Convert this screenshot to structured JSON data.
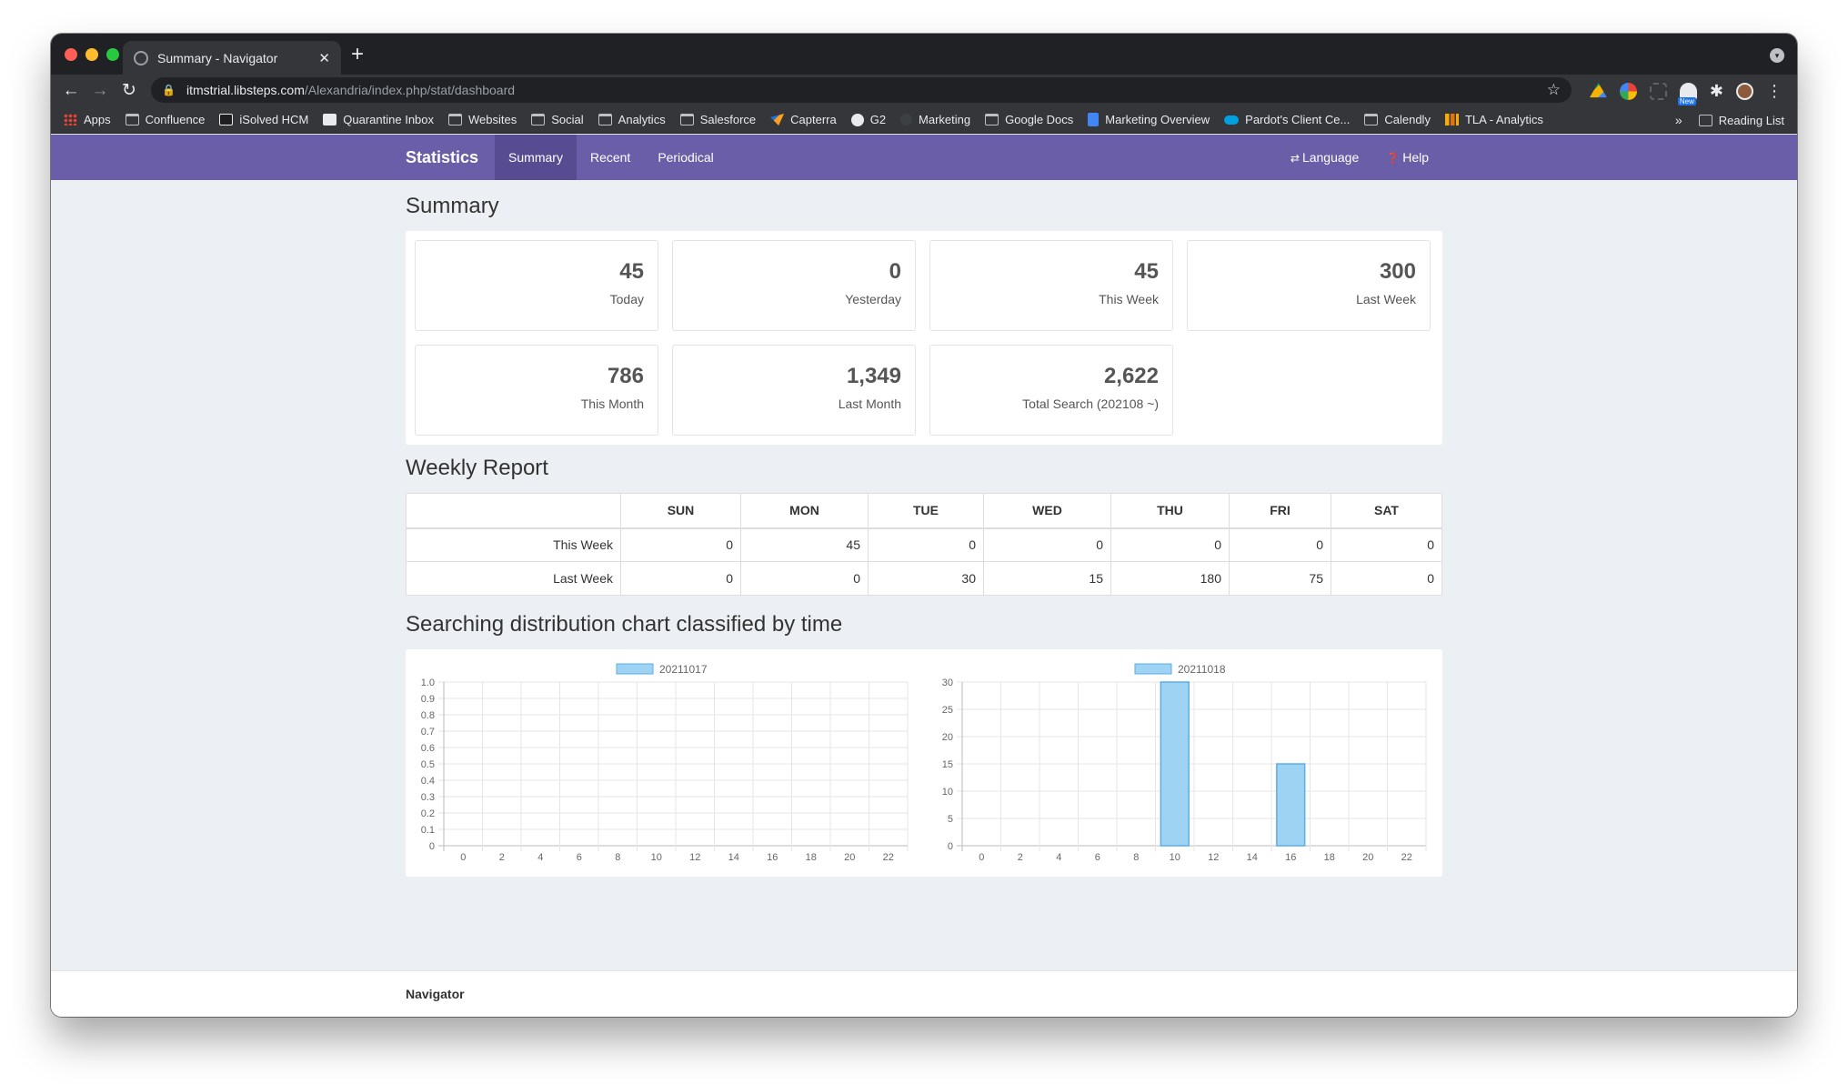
{
  "browser": {
    "tab_title": "Summary - Navigator",
    "url_host": "itmstrial.libsteps.com",
    "url_path": "/Alexandria/index.php/stat/dashboard",
    "bookmarks": [
      {
        "label": "Apps",
        "icon": "apps-grid-icon"
      },
      {
        "label": "Confluence",
        "icon": "folder-icon"
      },
      {
        "label": "iSolved HCM",
        "icon": "isolved-icon"
      },
      {
        "label": "Quarantine Inbox",
        "icon": "quarantine-icon"
      },
      {
        "label": "Websites",
        "icon": "folder-icon"
      },
      {
        "label": "Social",
        "icon": "folder-icon"
      },
      {
        "label": "Analytics",
        "icon": "folder-icon"
      },
      {
        "label": "Salesforce",
        "icon": "folder-icon"
      },
      {
        "label": "Capterra",
        "icon": "capterra-icon"
      },
      {
        "label": "G2",
        "icon": "g2-icon"
      },
      {
        "label": "Marketing",
        "icon": "marketing-icon"
      },
      {
        "label": "Google Docs",
        "icon": "folder-icon"
      },
      {
        "label": "Marketing Overview",
        "icon": "doc-icon"
      },
      {
        "label": "Pardot's Client Ce...",
        "icon": "cloud-icon"
      },
      {
        "label": "Calendly",
        "icon": "folder-icon"
      },
      {
        "label": "TLA - Analytics",
        "icon": "analytics-bars-icon"
      }
    ],
    "more_bookmarks": "»",
    "reading_list": "Reading List",
    "ext_badge": "New"
  },
  "nav": {
    "brand": "Statistics",
    "links": [
      "Summary",
      "Recent",
      "Periodical"
    ],
    "language": "Language",
    "help": "Help"
  },
  "summary": {
    "heading": "Summary",
    "stats": [
      {
        "value": "45",
        "label": "Today"
      },
      {
        "value": "0",
        "label": "Yesterday"
      },
      {
        "value": "45",
        "label": "This Week"
      },
      {
        "value": "300",
        "label": "Last Week"
      },
      {
        "value": "786",
        "label": "This Month"
      },
      {
        "value": "1,349",
        "label": "Last Month"
      },
      {
        "value": "2,622",
        "label": "Total Search (202108 ~)"
      }
    ]
  },
  "weekly": {
    "heading": "Weekly Report",
    "columns": [
      "",
      "SUN",
      "MON",
      "TUE",
      "WED",
      "THU",
      "FRI",
      "SAT"
    ],
    "rows": [
      {
        "label": "This Week",
        "values": [
          "0",
          "45",
          "0",
          "0",
          "0",
          "0",
          "0"
        ]
      },
      {
        "label": "Last Week",
        "values": [
          "0",
          "0",
          "30",
          "15",
          "180",
          "75",
          "0"
        ]
      }
    ]
  },
  "distribution": {
    "heading": "Searching distribution chart classified by time"
  },
  "chart_data": [
    {
      "type": "bar",
      "title": "",
      "legend": "20211017",
      "legend_position": "top",
      "x": [
        0,
        1,
        2,
        3,
        4,
        5,
        6,
        7,
        8,
        9,
        10,
        11,
        12,
        13,
        14,
        15,
        16,
        17,
        18,
        19,
        20,
        21,
        22,
        23
      ],
      "x_tick_labels": [
        "0",
        "2",
        "4",
        "6",
        "8",
        "10",
        "12",
        "14",
        "16",
        "18",
        "20",
        "22"
      ],
      "values": [
        0,
        0,
        0,
        0,
        0,
        0,
        0,
        0,
        0,
        0,
        0,
        0,
        0,
        0,
        0,
        0,
        0,
        0,
        0,
        0,
        0,
        0,
        0,
        0
      ],
      "ylim": [
        0,
        1.0
      ],
      "y_tick_labels": [
        "0",
        "0.1",
        "0.2",
        "0.3",
        "0.4",
        "0.5",
        "0.6",
        "0.7",
        "0.8",
        "0.9",
        "1.0"
      ],
      "grid": true,
      "color": "#9fd3f4",
      "edge_color": "#5aaee8"
    },
    {
      "type": "bar",
      "title": "",
      "legend": "20211018",
      "legend_position": "top",
      "x": [
        0,
        1,
        2,
        3,
        4,
        5,
        6,
        7,
        8,
        9,
        10,
        11,
        12,
        13,
        14,
        15,
        16,
        17,
        18,
        19,
        20,
        21,
        22,
        23
      ],
      "x_tick_labels": [
        "0",
        "2",
        "4",
        "6",
        "8",
        "10",
        "12",
        "14",
        "16",
        "18",
        "20",
        "22"
      ],
      "values": [
        0,
        0,
        0,
        0,
        0,
        0,
        0,
        0,
        0,
        0,
        30,
        0,
        0,
        0,
        0,
        0,
        15,
        0,
        0,
        0,
        0,
        0,
        0,
        0
      ],
      "ylim": [
        0,
        30
      ],
      "y_tick_labels": [
        "0",
        "5",
        "10",
        "15",
        "20",
        "25",
        "30"
      ],
      "grid": true,
      "color": "#9fd3f4",
      "edge_color": "#5aaee8"
    }
  ],
  "footer": {
    "text": "Navigator"
  }
}
